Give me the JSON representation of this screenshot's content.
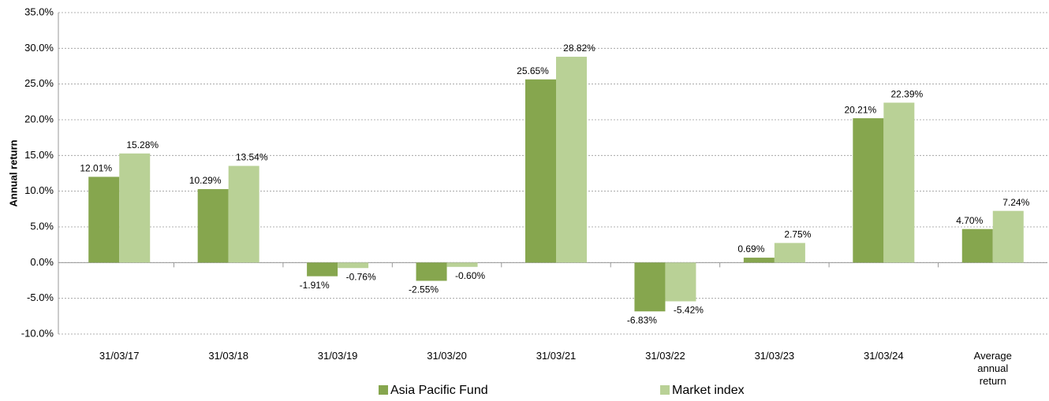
{
  "chart_data": {
    "type": "bar",
    "y_label": "Annual return",
    "categories": [
      "31/03/17",
      "31/03/18",
      "31/03/19",
      "31/03/20",
      "31/03/21",
      "31/03/22",
      "31/03/23",
      "31/03/24",
      "Average annual return"
    ],
    "series": [
      {
        "name": "Asia Pacific Fund",
        "color": "#86a64e",
        "values": [
          12.01,
          10.29,
          -1.91,
          -2.55,
          25.65,
          -6.83,
          0.69,
          20.21,
          4.7
        ],
        "value_labels": [
          "12.01%",
          "10.29%",
          "-1.91%",
          "-2.55%",
          "25.65%",
          "-6.83%",
          "0.69%",
          "20.21%",
          "4.70%"
        ]
      },
      {
        "name": "Market index",
        "color": "#b9d196",
        "values": [
          15.28,
          13.54,
          -0.76,
          -0.6,
          28.82,
          -5.42,
          2.75,
          22.39,
          7.24
        ],
        "value_labels": [
          "15.28%",
          "13.54%",
          "-0.76%",
          "-0.60%",
          "28.82%",
          "-5.42%",
          "2.75%",
          "22.39%",
          "7.24%"
        ]
      }
    ],
    "ylim": [
      -10,
      35
    ],
    "yticks": [
      {
        "value": -10,
        "label": "-10.0%"
      },
      {
        "value": -5,
        "label": "-5.0%"
      },
      {
        "value": 0,
        "label": "0.0%"
      },
      {
        "value": 5,
        "label": "5.0%"
      },
      {
        "value": 10,
        "label": "10.0%"
      },
      {
        "value": 15,
        "label": "15.0%"
      },
      {
        "value": 20,
        "label": "20.0%"
      },
      {
        "value": 25,
        "label": "25.0%"
      },
      {
        "value": 30,
        "label": "30.0%"
      },
      {
        "value": 35,
        "label": "35.0%"
      }
    ],
    "grid": true,
    "legend": "bottom"
  }
}
